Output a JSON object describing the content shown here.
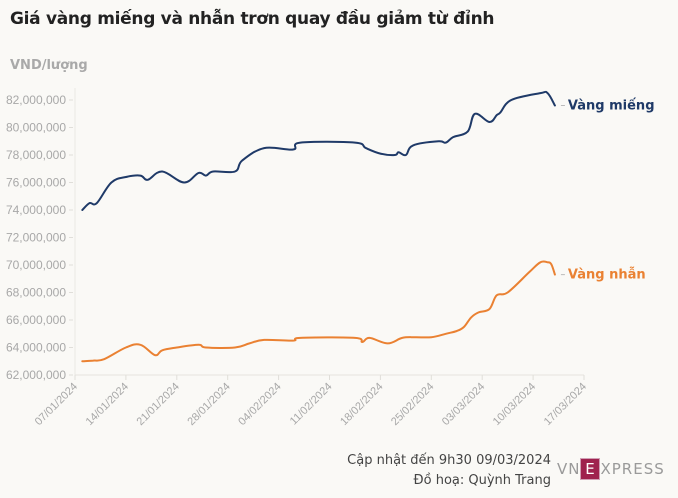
{
  "chart_data": {
    "type": "line",
    "title": "Giá vàng miếng và nhẫn trơn quay đầu giảm từ đỉnh",
    "ylabel": "VND/lượng",
    "xlabel": "",
    "x_unit": "days since 07/01/2024",
    "ylim": [
      62000000,
      82000000
    ],
    "xlim": [
      0,
      70
    ],
    "y_ticks": [
      62000000,
      64000000,
      66000000,
      68000000,
      70000000,
      72000000,
      74000000,
      76000000,
      78000000,
      80000000,
      82000000
    ],
    "y_tick_labels": [
      "62,000,000",
      "64,000,000",
      "66,000,000",
      "68,000,000",
      "70,000,000",
      "72,000,000",
      "74,000,000",
      "76,000,000",
      "78,000,000",
      "80,000,000",
      "82,000,000"
    ],
    "x_ticks": [
      0,
      7,
      14,
      21,
      28,
      35,
      42,
      49,
      56,
      63,
      70
    ],
    "x_tick_labels": [
      "07/01/2024",
      "14/01/2024",
      "21/01/2024",
      "28/01/2024",
      "04/02/2024",
      "11/02/2024",
      "18/02/2024",
      "25/02/2024",
      "03/03/2024",
      "10/03/2024",
      "17/03/2024"
    ],
    "grid": false,
    "series": [
      {
        "name": "Vàng miếng",
        "color": "#1f3a68",
        "x": [
          1,
          2,
          3,
          5,
          7,
          9,
          10,
          12,
          15,
          17,
          18,
          19,
          22,
          23,
          26,
          30,
          31,
          38.5,
          40,
          42,
          44,
          44.5,
          45.5,
          46.5,
          50,
          51,
          52,
          54,
          55,
          57,
          58,
          58.5,
          60,
          64,
          65,
          66
        ],
        "values": [
          74000000,
          74500000,
          74500000,
          76000000,
          76400000,
          76500000,
          76200000,
          76800000,
          76000000,
          76700000,
          76500000,
          76800000,
          76800000,
          77600000,
          78500000,
          78400000,
          78900000,
          78900000,
          78500000,
          78100000,
          78000000,
          78200000,
          78000000,
          78700000,
          79000000,
          78900000,
          79300000,
          79700000,
          81000000,
          80400000,
          80900000,
          81100000,
          82000000,
          82500000,
          82500000,
          81600000
        ]
      },
      {
        "name": "Vàng nhẫn",
        "color": "#ea8132",
        "x": [
          1,
          2.5,
          4,
          7,
          9,
          11,
          12,
          14,
          17,
          18,
          22,
          24,
          26,
          30,
          31,
          38.5,
          39.5,
          40.5,
          43,
          45,
          46.8,
          49,
          51,
          52.5,
          53.5,
          54.5,
          55.5,
          57,
          58,
          59.5,
          62.5,
          64,
          65,
          65.5,
          66
        ],
        "values": [
          63000000,
          63050000,
          63150000,
          64000000,
          64200000,
          63450000,
          63800000,
          64000000,
          64200000,
          64000000,
          64000000,
          64300000,
          64550000,
          64500000,
          64700000,
          64700000,
          64400000,
          64700000,
          64300000,
          64700000,
          64750000,
          64750000,
          65000000,
          65200000,
          65500000,
          66200000,
          66550000,
          66800000,
          67800000,
          68000000,
          69500000,
          70200000,
          70200000,
          70050000,
          69300000
        ]
      }
    ]
  },
  "footer": {
    "updated": "Cập nhật đến 9h30 09/03/2024",
    "credit": "Đồ hoạ: Quỳnh Trang"
  },
  "logo": {
    "text_left": "VN",
    "text_box": "E",
    "text_right": "XPRESS",
    "box_color": "#9f224e"
  }
}
